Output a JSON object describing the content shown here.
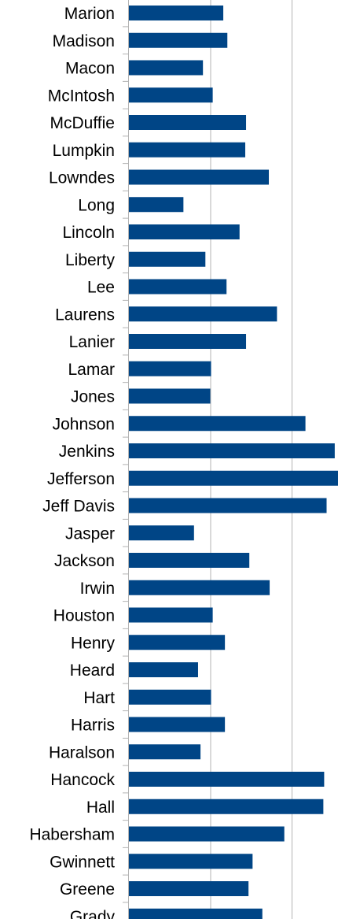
{
  "chart_data": {
    "type": "bar",
    "orientation": "horizontal",
    "categories": [
      "Marion",
      "Madison",
      "Macon",
      "McIntosh",
      "McDuffie",
      "Lumpkin",
      "Lowndes",
      "Long",
      "Lincoln",
      "Liberty",
      "Lee",
      "Laurens",
      "Lanier",
      "Lamar",
      "Jones",
      "Johnson",
      "Jenkins",
      "Jefferson",
      "Jeff Davis",
      "Jasper",
      "Jackson",
      "Irwin",
      "Houston",
      "Henry",
      "Heard",
      "Hart",
      "Harris",
      "Haralson",
      "Hancock",
      "Hall",
      "Habersham",
      "Gwinnett",
      "Greene",
      "Grady"
    ],
    "values": [
      1.16,
      1.21,
      0.91,
      1.03,
      1.44,
      1.43,
      1.72,
      0.67,
      1.36,
      0.94,
      1.2,
      1.82,
      1.44,
      1.01,
      1.0,
      2.17,
      2.53,
      2.57,
      2.43,
      0.8,
      1.48,
      1.73,
      1.03,
      1.18,
      0.85,
      1.01,
      1.18,
      0.88,
      2.4,
      2.39,
      1.91,
      1.52,
      1.47,
      1.64
    ],
    "xlim": [
      0,
      2.5
    ],
    "grid": true,
    "bar_color": "#004586",
    "grid_color": "#b3b3b3",
    "title": "",
    "xlabel": "",
    "ylabel": ""
  }
}
